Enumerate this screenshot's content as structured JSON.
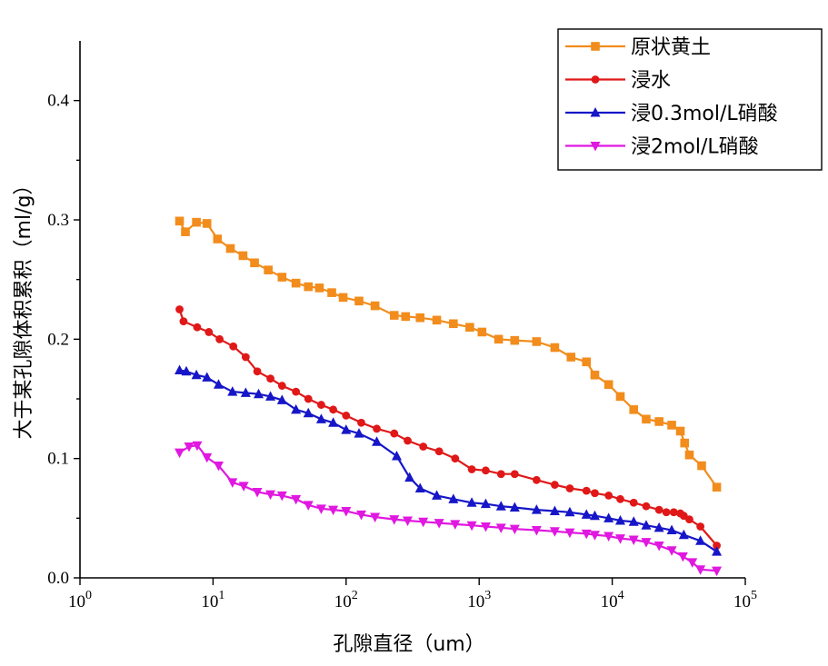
{
  "chart_data": {
    "type": "line",
    "title": "",
    "xlabel": "孔隙直径（um）",
    "ylabel": "大于某孔隙体积累积（ml/g）",
    "x_scale": "log",
    "xlim": [
      1,
      100000
    ],
    "ylim": [
      0,
      0.45
    ],
    "x_ticks": [
      {
        "base": "10",
        "exp": "0"
      },
      {
        "base": "10",
        "exp": "1"
      },
      {
        "base": "10",
        "exp": "2"
      },
      {
        "base": "10",
        "exp": "3"
      },
      {
        "base": "10",
        "exp": "4"
      },
      {
        "base": "10",
        "exp": "5"
      }
    ],
    "y_ticks": [
      "0.0",
      "0.1",
      "0.2",
      "0.3",
      "0.4"
    ],
    "legend_position": "top-right",
    "series": [
      {
        "name": "原状黄土",
        "color": "#f28c1c",
        "marker": "square",
        "x": [
          5.6,
          6.2,
          7.5,
          9.0,
          10.8,
          13.5,
          16.8,
          20.5,
          26,
          33,
          42,
          52,
          63,
          78,
          95,
          125,
          165,
          230,
          280,
          360,
          480,
          640,
          850,
          1050,
          1400,
          1850,
          2700,
          3700,
          4900,
          6400,
          7400,
          9400,
          11500,
          14500,
          18000,
          22500,
          28000,
          32500,
          35000,
          38000,
          47000,
          61000
        ],
        "y": [
          0.299,
          0.29,
          0.298,
          0.297,
          0.284,
          0.276,
          0.27,
          0.264,
          0.258,
          0.252,
          0.247,
          0.244,
          0.243,
          0.239,
          0.235,
          0.232,
          0.228,
          0.22,
          0.219,
          0.218,
          0.216,
          0.213,
          0.21,
          0.206,
          0.2,
          0.199,
          0.198,
          0.193,
          0.185,
          0.181,
          0.17,
          0.162,
          0.152,
          0.141,
          0.133,
          0.131,
          0.128,
          0.123,
          0.113,
          0.103,
          0.094,
          0.076
        ]
      },
      {
        "name": "浸水",
        "color": "#e01818",
        "marker": "circle",
        "x": [
          5.6,
          6.0,
          7.6,
          9.3,
          11.2,
          14.2,
          17.6,
          21.5,
          27,
          33,
          42,
          52,
          65,
          80,
          100,
          130,
          170,
          230,
          290,
          380,
          500,
          660,
          880,
          1120,
          1460,
          1850,
          2700,
          3700,
          4800,
          6400,
          7400,
          9400,
          11500,
          14500,
          18000,
          22500,
          25500,
          29000,
          32500,
          34500,
          38000,
          46000,
          61000
        ],
        "y": [
          0.225,
          0.215,
          0.21,
          0.206,
          0.2,
          0.194,
          0.185,
          0.173,
          0.167,
          0.161,
          0.156,
          0.15,
          0.145,
          0.141,
          0.136,
          0.13,
          0.125,
          0.121,
          0.115,
          0.11,
          0.106,
          0.1,
          0.091,
          0.09,
          0.087,
          0.087,
          0.082,
          0.078,
          0.075,
          0.073,
          0.071,
          0.069,
          0.066,
          0.063,
          0.06,
          0.057,
          0.055,
          0.055,
          0.054,
          0.052,
          0.049,
          0.043,
          0.027
        ]
      },
      {
        "name": "浸0.3mol/L硝酸",
        "color": "#1616c8",
        "marker": "triangle-up",
        "x": [
          5.6,
          6.3,
          7.5,
          9.0,
          11.0,
          14.0,
          17.6,
          22,
          27,
          33,
          42,
          52,
          65,
          80,
          100,
          125,
          170,
          240,
          300,
          360,
          480,
          640,
          880,
          1120,
          1460,
          1850,
          2700,
          3700,
          4800,
          6400,
          7400,
          9400,
          11500,
          14500,
          18000,
          22500,
          28000,
          34500,
          46000,
          61000
        ],
        "y": [
          0.174,
          0.173,
          0.17,
          0.168,
          0.162,
          0.156,
          0.155,
          0.154,
          0.152,
          0.149,
          0.141,
          0.138,
          0.133,
          0.13,
          0.124,
          0.121,
          0.114,
          0.102,
          0.084,
          0.075,
          0.069,
          0.066,
          0.063,
          0.062,
          0.06,
          0.059,
          0.057,
          0.056,
          0.055,
          0.053,
          0.052,
          0.05,
          0.048,
          0.047,
          0.044,
          0.042,
          0.04,
          0.036,
          0.031,
          0.022
        ]
      },
      {
        "name": "浸2mol/L硝酸",
        "color": "#e018e0",
        "marker": "triangle-down",
        "x": [
          5.6,
          6.6,
          7.6,
          9.0,
          11.0,
          14.0,
          17.0,
          21.5,
          27,
          33,
          42,
          52,
          65,
          80,
          100,
          130,
          165,
          230,
          290,
          380,
          500,
          660,
          880,
          1120,
          1460,
          1850,
          2700,
          3700,
          4800,
          6400,
          7400,
          9400,
          11500,
          14500,
          18000,
          22500,
          28000,
          34000,
          40000,
          46000,
          61000
        ],
        "y": [
          0.105,
          0.11,
          0.111,
          0.101,
          0.094,
          0.08,
          0.077,
          0.072,
          0.07,
          0.069,
          0.066,
          0.061,
          0.058,
          0.057,
          0.056,
          0.053,
          0.051,
          0.049,
          0.048,
          0.047,
          0.046,
          0.045,
          0.044,
          0.043,
          0.042,
          0.041,
          0.04,
          0.039,
          0.038,
          0.037,
          0.036,
          0.035,
          0.033,
          0.032,
          0.03,
          0.027,
          0.023,
          0.018,
          0.013,
          0.007,
          0.006
        ]
      }
    ]
  }
}
